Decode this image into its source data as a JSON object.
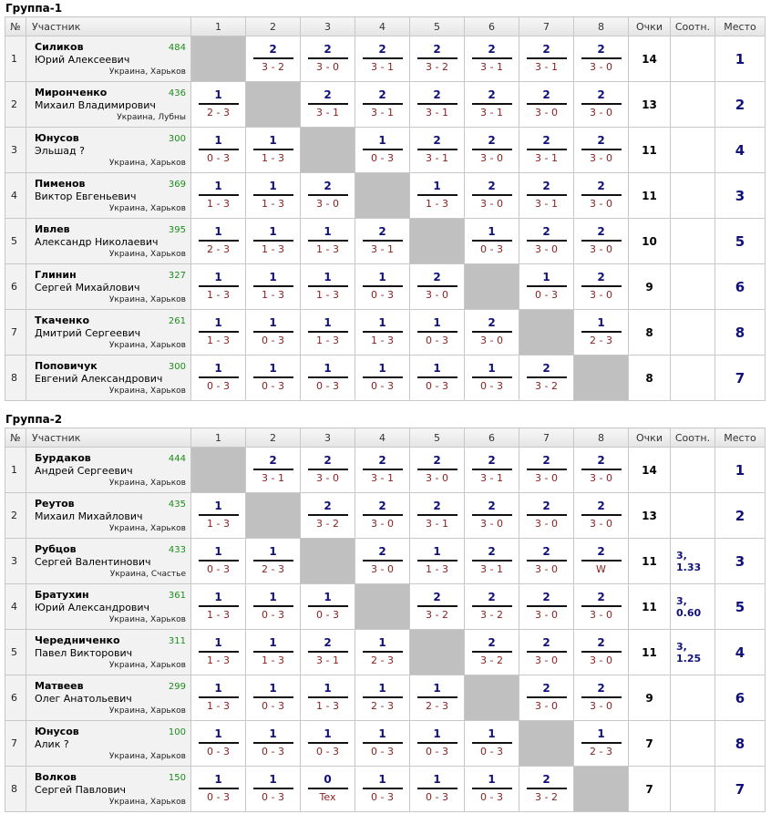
{
  "headers": {
    "num": "№",
    "participant": "Участник",
    "cols": [
      "1",
      "2",
      "3",
      "4",
      "5",
      "6",
      "7",
      "8"
    ],
    "points": "Очки",
    "ratio": "Соотн.",
    "place": "Место"
  },
  "groups": [
    {
      "title": "Группа-1",
      "rows": [
        {
          "n": "1",
          "surname": "Силиков",
          "fullname": "Юрий Алексеевич",
          "rating": "484",
          "location": "Украина, Харьков",
          "cells": [
            null,
            {
              "p": "2",
              "s": "3 - 2"
            },
            {
              "p": "2",
              "s": "3 - 0"
            },
            {
              "p": "2",
              "s": "3 - 1"
            },
            {
              "p": "2",
              "s": "3 - 2"
            },
            {
              "p": "2",
              "s": "3 - 1"
            },
            {
              "p": "2",
              "s": "3 - 1"
            },
            {
              "p": "2",
              "s": "3 - 0"
            }
          ],
          "points": "14",
          "ratio": "",
          "place": "1"
        },
        {
          "n": "2",
          "surname": "Миронченко",
          "fullname": "Михаил Владимирович",
          "rating": "436",
          "location": "Украина, Лубны",
          "cells": [
            {
              "p": "1",
              "s": "2 - 3"
            },
            null,
            {
              "p": "2",
              "s": "3 - 1"
            },
            {
              "p": "2",
              "s": "3 - 1"
            },
            {
              "p": "2",
              "s": "3 - 1"
            },
            {
              "p": "2",
              "s": "3 - 1"
            },
            {
              "p": "2",
              "s": "3 - 0"
            },
            {
              "p": "2",
              "s": "3 - 0"
            }
          ],
          "points": "13",
          "ratio": "",
          "place": "2"
        },
        {
          "n": "3",
          "surname": "Юнусов",
          "fullname": "Эльшад ?",
          "rating": "300",
          "location": "Украина, Харьков",
          "cells": [
            {
              "p": "1",
              "s": "0 - 3"
            },
            {
              "p": "1",
              "s": "1 - 3"
            },
            null,
            {
              "p": "1",
              "s": "0 - 3"
            },
            {
              "p": "2",
              "s": "3 - 1"
            },
            {
              "p": "2",
              "s": "3 - 0"
            },
            {
              "p": "2",
              "s": "3 - 1"
            },
            {
              "p": "2",
              "s": "3 - 0"
            }
          ],
          "points": "11",
          "ratio": "",
          "place": "4"
        },
        {
          "n": "4",
          "surname": "Пименов",
          "fullname": "Виктор Евгеньевич",
          "rating": "369",
          "location": "Украина, Харьков",
          "cells": [
            {
              "p": "1",
              "s": "1 - 3"
            },
            {
              "p": "1",
              "s": "1 - 3"
            },
            {
              "p": "2",
              "s": "3 - 0"
            },
            null,
            {
              "p": "1",
              "s": "1 - 3"
            },
            {
              "p": "2",
              "s": "3 - 0"
            },
            {
              "p": "2",
              "s": "3 - 1"
            },
            {
              "p": "2",
              "s": "3 - 0"
            }
          ],
          "points": "11",
          "ratio": "",
          "place": "3"
        },
        {
          "n": "5",
          "surname": "Ивлев",
          "fullname": "Александр Николаевич",
          "rating": "395",
          "location": "Украина, Харьков",
          "cells": [
            {
              "p": "1",
              "s": "2 - 3"
            },
            {
              "p": "1",
              "s": "1 - 3"
            },
            {
              "p": "1",
              "s": "1 - 3"
            },
            {
              "p": "2",
              "s": "3 - 1"
            },
            null,
            {
              "p": "1",
              "s": "0 - 3"
            },
            {
              "p": "2",
              "s": "3 - 0"
            },
            {
              "p": "2",
              "s": "3 - 0"
            }
          ],
          "points": "10",
          "ratio": "",
          "place": "5"
        },
        {
          "n": "6",
          "surname": "Глинин",
          "fullname": "Сергей Михайлович",
          "rating": "327",
          "location": "Украина, Харьков",
          "cells": [
            {
              "p": "1",
              "s": "1 - 3"
            },
            {
              "p": "1",
              "s": "1 - 3"
            },
            {
              "p": "1",
              "s": "1 - 3"
            },
            {
              "p": "1",
              "s": "0 - 3"
            },
            {
              "p": "2",
              "s": "3 - 0"
            },
            null,
            {
              "p": "1",
              "s": "0 - 3"
            },
            {
              "p": "2",
              "s": "3 - 0"
            }
          ],
          "points": "9",
          "ratio": "",
          "place": "6"
        },
        {
          "n": "7",
          "surname": "Ткаченко",
          "fullname": "Дмитрий Сергеевич",
          "rating": "261",
          "location": "Украина, Харьков",
          "cells": [
            {
              "p": "1",
              "s": "1 - 3"
            },
            {
              "p": "1",
              "s": "0 - 3"
            },
            {
              "p": "1",
              "s": "1 - 3"
            },
            {
              "p": "1",
              "s": "1 - 3"
            },
            {
              "p": "1",
              "s": "0 - 3"
            },
            {
              "p": "2",
              "s": "3 - 0"
            },
            null,
            {
              "p": "1",
              "s": "2 - 3"
            }
          ],
          "points": "8",
          "ratio": "",
          "place": "8"
        },
        {
          "n": "8",
          "surname": "Поповичук",
          "fullname": "Евгений Александрович",
          "rating": "300",
          "location": "Украина, Харьков",
          "cells": [
            {
              "p": "1",
              "s": "0 - 3"
            },
            {
              "p": "1",
              "s": "0 - 3"
            },
            {
              "p": "1",
              "s": "0 - 3"
            },
            {
              "p": "1",
              "s": "0 - 3"
            },
            {
              "p": "1",
              "s": "0 - 3"
            },
            {
              "p": "1",
              "s": "0 - 3"
            },
            {
              "p": "2",
              "s": "3 - 2"
            },
            null
          ],
          "points": "8",
          "ratio": "",
          "place": "7"
        }
      ]
    },
    {
      "title": "Группа-2",
      "rows": [
        {
          "n": "1",
          "surname": "Бурдаков",
          "fullname": "Андрей Сергеевич",
          "rating": "444",
          "location": "Украина, Харьков",
          "cells": [
            null,
            {
              "p": "2",
              "s": "3 - 1"
            },
            {
              "p": "2",
              "s": "3 - 0"
            },
            {
              "p": "2",
              "s": "3 - 1"
            },
            {
              "p": "2",
              "s": "3 - 0"
            },
            {
              "p": "2",
              "s": "3 - 1"
            },
            {
              "p": "2",
              "s": "3 - 0"
            },
            {
              "p": "2",
              "s": "3 - 0"
            }
          ],
          "points": "14",
          "ratio": "",
          "place": "1"
        },
        {
          "n": "2",
          "surname": "Реутов",
          "fullname": "Михаил Михайлович",
          "rating": "435",
          "location": "Украина, Харьков",
          "cells": [
            {
              "p": "1",
              "s": "1 - 3"
            },
            null,
            {
              "p": "2",
              "s": "3 - 2"
            },
            {
              "p": "2",
              "s": "3 - 0"
            },
            {
              "p": "2",
              "s": "3 - 1"
            },
            {
              "p": "2",
              "s": "3 - 0"
            },
            {
              "p": "2",
              "s": "3 - 0"
            },
            {
              "p": "2",
              "s": "3 - 0"
            }
          ],
          "points": "13",
          "ratio": "",
          "place": "2"
        },
        {
          "n": "3",
          "surname": "Рубцов",
          "fullname": "Сергей Валентинович",
          "rating": "433",
          "location": "Украина, Счастье",
          "cells": [
            {
              "p": "1",
              "s": "0 - 3"
            },
            {
              "p": "1",
              "s": "2 - 3"
            },
            null,
            {
              "p": "2",
              "s": "3 - 0"
            },
            {
              "p": "1",
              "s": "1 - 3"
            },
            {
              "p": "2",
              "s": "3 - 1"
            },
            {
              "p": "2",
              "s": "3 - 0"
            },
            {
              "p": "2",
              "s": "W"
            }
          ],
          "points": "11",
          "ratio": "3, 1.33",
          "place": "3"
        },
        {
          "n": "4",
          "surname": "Братухин",
          "fullname": "Юрий Александрович",
          "rating": "361",
          "location": "Украина, Харьков",
          "cells": [
            {
              "p": "1",
              "s": "1 - 3"
            },
            {
              "p": "1",
              "s": "0 - 3"
            },
            {
              "p": "1",
              "s": "0 - 3"
            },
            null,
            {
              "p": "2",
              "s": "3 - 2"
            },
            {
              "p": "2",
              "s": "3 - 2"
            },
            {
              "p": "2",
              "s": "3 - 0"
            },
            {
              "p": "2",
              "s": "3 - 0"
            }
          ],
          "points": "11",
          "ratio": "3, 0.60",
          "place": "5"
        },
        {
          "n": "5",
          "surname": "Чередниченко",
          "fullname": "Павел Викторович",
          "rating": "311",
          "location": "Украина, Харьков",
          "cells": [
            {
              "p": "1",
              "s": "1 - 3"
            },
            {
              "p": "1",
              "s": "1 - 3"
            },
            {
              "p": "2",
              "s": "3 - 1"
            },
            {
              "p": "1",
              "s": "2 - 3"
            },
            null,
            {
              "p": "2",
              "s": "3 - 2"
            },
            {
              "p": "2",
              "s": "3 - 0"
            },
            {
              "p": "2",
              "s": "3 - 0"
            }
          ],
          "points": "11",
          "ratio": "3, 1.25",
          "place": "4"
        },
        {
          "n": "6",
          "surname": "Матвеев",
          "fullname": "Олег Анатольевич",
          "rating": "299",
          "location": "Украина, Харьков",
          "cells": [
            {
              "p": "1",
              "s": "1 - 3"
            },
            {
              "p": "1",
              "s": "0 - 3"
            },
            {
              "p": "1",
              "s": "1 - 3"
            },
            {
              "p": "1",
              "s": "2 - 3"
            },
            {
              "p": "1",
              "s": "2 - 3"
            },
            null,
            {
              "p": "2",
              "s": "3 - 0"
            },
            {
              "p": "2",
              "s": "3 - 0"
            }
          ],
          "points": "9",
          "ratio": "",
          "place": "6"
        },
        {
          "n": "7",
          "surname": "Юнусов",
          "fullname": "Алик ?",
          "rating": "100",
          "location": "Украина, Харьков",
          "cells": [
            {
              "p": "1",
              "s": "0 - 3"
            },
            {
              "p": "1",
              "s": "0 - 3"
            },
            {
              "p": "1",
              "s": "0 - 3"
            },
            {
              "p": "1",
              "s": "0 - 3"
            },
            {
              "p": "1",
              "s": "0 - 3"
            },
            {
              "p": "1",
              "s": "0 - 3"
            },
            null,
            {
              "p": "1",
              "s": "2 - 3"
            }
          ],
          "points": "7",
          "ratio": "",
          "place": "8"
        },
        {
          "n": "8",
          "surname": "Волков",
          "fullname": "Сергей Павлович",
          "rating": "150",
          "location": "Украина, Харьков",
          "cells": [
            {
              "p": "1",
              "s": "0 - 3"
            },
            {
              "p": "1",
              "s": "0 - 3"
            },
            {
              "p": "0",
              "s": "Tex"
            },
            {
              "p": "1",
              "s": "0 - 3"
            },
            {
              "p": "1",
              "s": "0 - 3"
            },
            {
              "p": "1",
              "s": "0 - 3"
            },
            {
              "p": "2",
              "s": "3 - 2"
            },
            null
          ],
          "points": "7",
          "ratio": "",
          "place": "7"
        }
      ]
    }
  ]
}
